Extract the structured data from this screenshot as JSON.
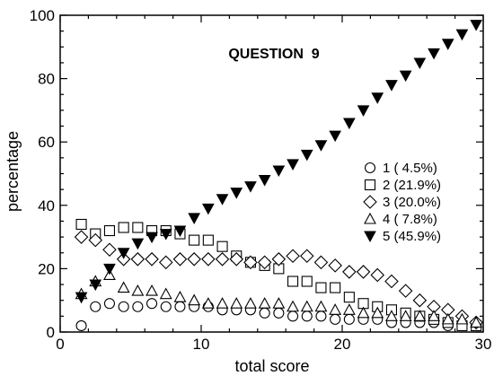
{
  "chart_data": {
    "type": "scatter",
    "title": "QUESTION  9",
    "xlabel": "total score",
    "ylabel": "percentage",
    "xlim": [
      0,
      30
    ],
    "ylim": [
      0,
      100
    ],
    "xticks": [
      0,
      10,
      20,
      30
    ],
    "yticks": [
      0,
      20,
      40,
      60,
      80,
      100
    ],
    "grid": false,
    "legend_position": "right",
    "series": [
      {
        "name": "1 (  4.5%)",
        "marker": "circle-open",
        "x": [
          1.5,
          2.5,
          3.5,
          4.5,
          5.5,
          6.5,
          7.5,
          8.5,
          9.5,
          10.5,
          11.5,
          12.5,
          13.5,
          14.5,
          15.5,
          16.5,
          17.5,
          18.5,
          19.5,
          20.5,
          21.5,
          22.5,
          23.5,
          24.5,
          25.5,
          26.5,
          27.5,
          28.5,
          29.5
        ],
        "y": [
          2,
          8,
          9,
          8,
          8,
          9,
          8,
          8,
          8,
          8,
          7,
          7,
          7,
          6,
          6,
          5,
          5,
          5,
          4,
          4,
          4,
          4,
          3,
          3,
          3,
          3,
          2,
          2,
          2
        ]
      },
      {
        "name": "2 (21.9%)",
        "marker": "square-open",
        "x": [
          1.5,
          2.5,
          3.5,
          4.5,
          5.5,
          6.5,
          7.5,
          8.5,
          9.5,
          10.5,
          11.5,
          12.5,
          13.5,
          14.5,
          15.5,
          16.5,
          17.5,
          18.5,
          19.5,
          20.5,
          21.5,
          22.5,
          23.5,
          24.5,
          25.5,
          26.5,
          27.5,
          28.5,
          29.5
        ],
        "y": [
          34,
          31,
          32,
          33,
          33,
          32,
          32,
          31,
          29,
          29,
          27,
          24,
          22,
          21,
          20,
          16,
          16,
          14,
          14,
          11,
          9,
          8,
          7,
          6,
          5,
          4,
          3,
          2,
          2
        ]
      },
      {
        "name": "3 (20.0%)",
        "marker": "diamond-open",
        "x": [
          1.5,
          2.5,
          3.5,
          4.5,
          5.5,
          6.5,
          7.5,
          8.5,
          9.5,
          10.5,
          11.5,
          12.5,
          13.5,
          14.5,
          15.5,
          16.5,
          17.5,
          18.5,
          19.5,
          20.5,
          21.5,
          22.5,
          23.5,
          24.5,
          25.5,
          26.5,
          27.5,
          28.5,
          29.5
        ],
        "y": [
          30,
          29,
          26,
          23,
          23,
          23,
          22,
          23,
          23,
          23,
          23,
          23,
          22,
          22,
          23,
          24,
          24,
          22,
          21,
          19,
          19,
          18,
          16,
          13,
          10,
          8,
          7,
          5,
          3
        ]
      },
      {
        "name": "4 (  7.8%)",
        "marker": "triangle-open",
        "x": [
          1.5,
          2.5,
          3.5,
          4.5,
          5.5,
          6.5,
          7.5,
          8.5,
          9.5,
          10.5,
          11.5,
          12.5,
          13.5,
          14.5,
          15.5,
          16.5,
          17.5,
          18.5,
          19.5,
          20.5,
          21.5,
          22.5,
          23.5,
          24.5,
          25.5,
          26.5,
          27.5,
          28.5,
          29.5
        ],
        "y": [
          12,
          16,
          18,
          14,
          13,
          13,
          12,
          11,
          10,
          9,
          9,
          9,
          9,
          9,
          9,
          8,
          8,
          8,
          7,
          7,
          6,
          6,
          5,
          5,
          5,
          5,
          4,
          4,
          3
        ]
      },
      {
        "name": "5 (45.9%)",
        "marker": "triangle-down-filled",
        "x": [
          1.5,
          2.5,
          3.5,
          4.5,
          5.5,
          6.5,
          7.5,
          8.5,
          9.5,
          10.5,
          11.5,
          12.5,
          13.5,
          14.5,
          15.5,
          16.5,
          17.5,
          18.5,
          19.5,
          20.5,
          21.5,
          22.5,
          23.5,
          24.5,
          25.5,
          26.5,
          27.5,
          28.5,
          29.5
        ],
        "y": [
          11,
          15,
          20,
          25,
          28,
          30,
          31,
          32,
          36,
          39,
          42,
          44,
          46,
          48,
          51,
          53,
          56,
          59,
          62,
          66,
          70,
          74,
          78,
          81,
          85,
          88,
          91,
          94,
          97
        ]
      }
    ]
  }
}
